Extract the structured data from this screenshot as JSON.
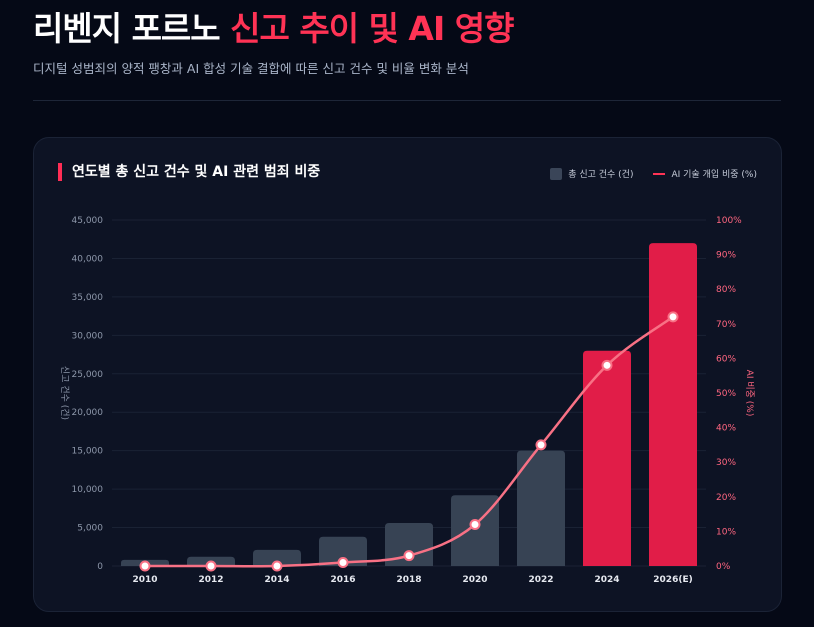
{
  "header": {
    "title_main": "리벤지 포르노",
    "title_accent": "신고 추이 및 AI 영향",
    "subtitle": "디지털 성범죄의 양적 팽창과 AI 합성 기술 결합에 따른 신고 건수 및 비율 변화 분석"
  },
  "colors": {
    "background": "#050916",
    "card": "#0d1324",
    "bar_default": "#374354",
    "bar_highlight": "#e11d48",
    "line": "#f87185",
    "accent": "#ff3355"
  },
  "chart_data": {
    "type": "bar+line",
    "title": "연도별 총 신고 건수 및 AI 관련 범죄 비중",
    "categories": [
      "2010",
      "2012",
      "2014",
      "2016",
      "2018",
      "2020",
      "2022",
      "2024",
      "2026(E)"
    ],
    "series": [
      {
        "name": "총 신고 건수 (건)",
        "type": "bar",
        "axis": "left",
        "values": [
          800,
          1200,
          2100,
          3800,
          5600,
          9200,
          15000,
          28000,
          42000
        ],
        "highlighted": [
          false,
          false,
          false,
          false,
          false,
          false,
          false,
          true,
          true
        ]
      },
      {
        "name": "AI 기술 개입 비중 (%)",
        "type": "line",
        "axis": "right",
        "values": [
          0,
          0,
          0,
          1,
          3,
          12,
          35,
          58,
          72
        ]
      }
    ],
    "ylabel": "신고 건수 (건)",
    "y2label": "AI 비중 (%)",
    "ylim": [
      0,
      45000
    ],
    "yticks": [
      "0",
      "5,000",
      "10,000",
      "15,000",
      "20,000",
      "25,000",
      "30,000",
      "35,000",
      "40,000",
      "45,000"
    ],
    "y2lim": [
      0,
      100
    ],
    "y2ticks": [
      "0%",
      "10%",
      "20%",
      "30%",
      "40%",
      "50%",
      "60%",
      "70%",
      "80%",
      "90%",
      "100%"
    ],
    "grid": true,
    "legend": "top-right"
  }
}
